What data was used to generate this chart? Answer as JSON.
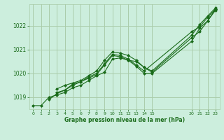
{
  "title": "Graphe pression niveau de la mer (hPa)",
  "bg_color": "#cceedd",
  "grid_color": "#aaccaa",
  "line_color": "#1a6b1a",
  "marker_color": "#1a6b1a",
  "ylim": [
    1018.5,
    1022.9
  ],
  "yticks": [
    1019,
    1020,
    1021,
    1022
  ],
  "xticks": [
    0,
    1,
    2,
    3,
    4,
    5,
    6,
    7,
    8,
    9,
    10,
    11,
    12,
    13,
    14,
    15,
    20,
    21,
    22,
    23
  ],
  "xlim": [
    -0.5,
    23.5
  ],
  "series": [
    {
      "x": [
        0,
        1,
        2,
        3,
        4,
        5,
        6,
        7,
        8,
        9,
        10,
        11,
        12,
        13,
        14,
        15,
        20,
        21,
        22,
        23
      ],
      "y": [
        1018.65,
        1018.65,
        1019.0,
        1019.1,
        1019.2,
        1019.4,
        1019.5,
        1019.7,
        1019.9,
        1020.05,
        1020.6,
        1020.65,
        1020.55,
        1020.3,
        1020.0,
        1020.0,
        1021.35,
        1021.9,
        1022.2,
        1022.7
      ]
    },
    {
      "x": [
        2,
        3,
        4,
        5,
        6,
        7,
        8,
        9,
        10,
        11,
        12,
        13,
        14,
        15,
        20,
        21,
        22,
        23
      ],
      "y": [
        1018.9,
        1019.15,
        1019.3,
        1019.55,
        1019.65,
        1019.8,
        1019.95,
        1020.35,
        1020.75,
        1020.7,
        1020.55,
        1020.5,
        1020.25,
        1020.05,
        1021.5,
        1021.75,
        1022.2,
        1022.65
      ]
    },
    {
      "x": [
        3,
        4,
        5,
        6,
        7,
        8,
        9,
        10,
        11,
        12,
        13,
        14,
        20,
        21,
        22,
        23
      ],
      "y": [
        1019.2,
        1019.3,
        1019.5,
        1019.65,
        1019.85,
        1020.0,
        1020.4,
        1020.8,
        1020.75,
        1020.6,
        1020.35,
        1020.1,
        1021.75,
        1021.95,
        1022.35,
        1022.7
      ]
    },
    {
      "x": [
        3,
        4,
        5,
        6,
        7,
        8,
        9,
        10,
        11,
        12,
        13,
        14,
        15,
        20,
        21,
        22,
        23
      ],
      "y": [
        1019.35,
        1019.5,
        1019.6,
        1019.7,
        1019.9,
        1020.1,
        1020.55,
        1020.9,
        1020.85,
        1020.75,
        1020.55,
        1020.25,
        1020.1,
        1021.6,
        1022.05,
        1022.4,
        1022.75
      ]
    }
  ]
}
